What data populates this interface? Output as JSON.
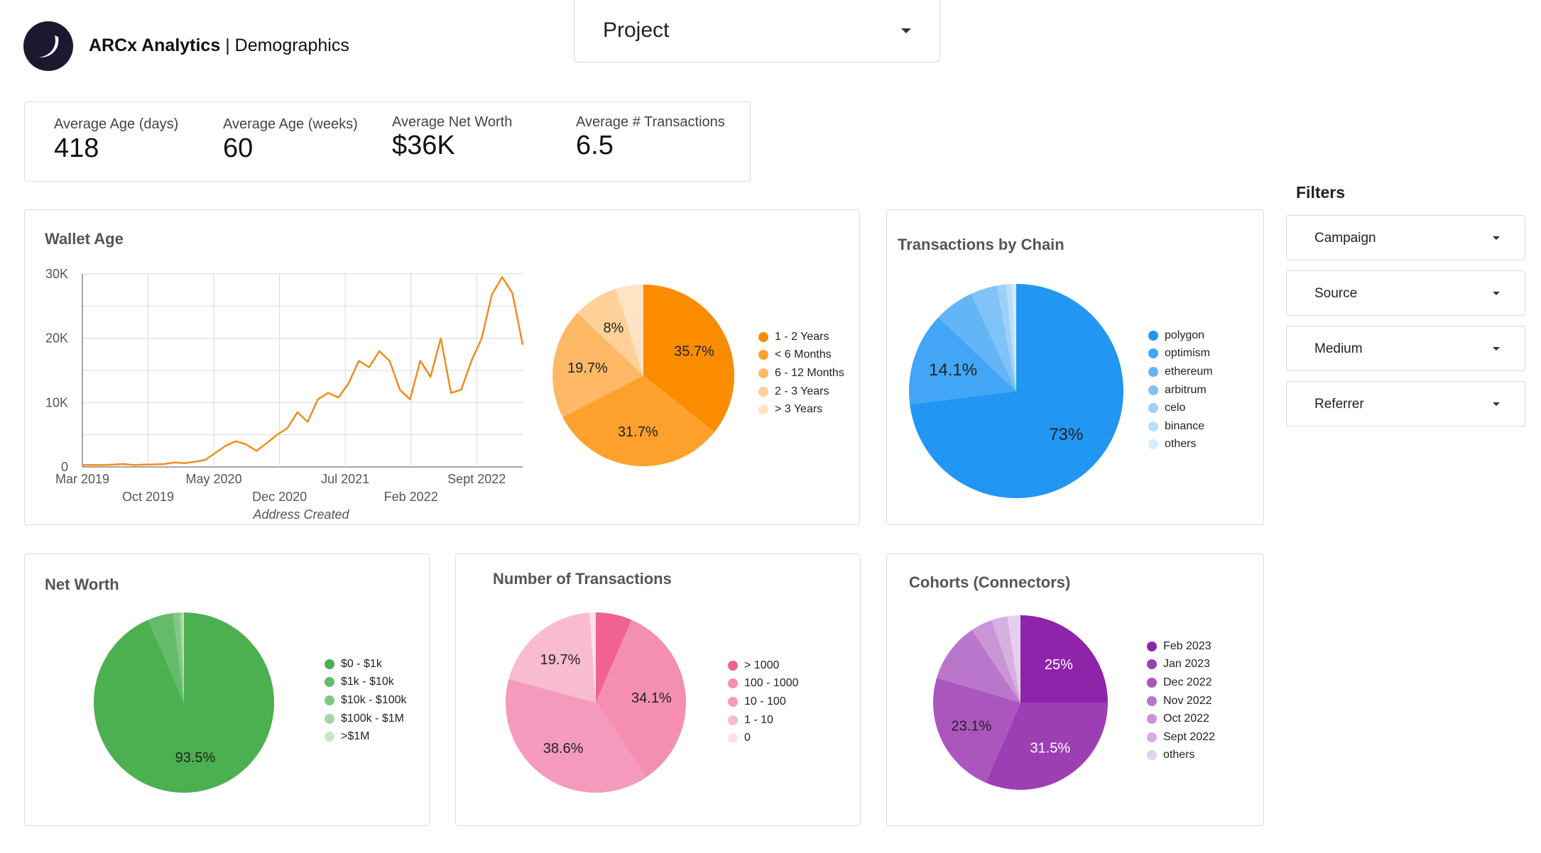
{
  "header": {
    "brand_bold": "ARCx Analytics",
    "brand_rest": " | Demographics",
    "project_label": "Project"
  },
  "kpis": [
    {
      "label": "Average Age (days)",
      "value": "418"
    },
    {
      "label": "Average Age (weeks)",
      "value": "60"
    },
    {
      "label": "Average Net Worth",
      "value": "$36K"
    },
    {
      "label": "Average # Transactions",
      "value": "6.5"
    }
  ],
  "filters": {
    "title": "Filters",
    "items": [
      "Campaign",
      "Source",
      "Medium",
      "Referrer"
    ]
  },
  "cards": {
    "wallet_age": "Wallet Age",
    "transactions_by_chain": "Transactions by Chain",
    "net_worth": "Net Worth",
    "num_transactions": "Number of Transactions",
    "cohorts": "Cohorts (Connectors)"
  },
  "colors": {
    "line": "#f28c1e",
    "grid": "#d9d9d9"
  },
  "chart_data": [
    {
      "id": "wallet_age_line",
      "type": "line",
      "title": "Wallet Age",
      "xlabel": "Address Created",
      "ylabel": "",
      "ylim": [
        0,
        30000
      ],
      "yticks": [
        "0",
        "10K",
        "20K",
        "30K"
      ],
      "xticks": [
        "Mar 2019",
        "Oct 2019",
        "May 2020",
        "Dec 2020",
        "Jul 2021",
        "Feb 2022",
        "Sept 2022"
      ],
      "grid": true,
      "series": [
        {
          "color": "#f28c1e",
          "values": [
            300,
            300,
            300,
            350,
            450,
            300,
            350,
            400,
            450,
            700,
            600,
            800,
            1100,
            2200,
            3300,
            4000,
            3500,
            2500,
            3700,
            5000,
            6000,
            8500,
            7000,
            10500,
            11500,
            10800,
            13000,
            16500,
            15500,
            18000,
            16500,
            12000,
            10500,
            16500,
            14000,
            20000,
            11500,
            12000,
            16500,
            20000,
            26800,
            29500,
            27000,
            19000
          ]
        }
      ]
    },
    {
      "id": "wallet_age_pie",
      "type": "pie",
      "categories": [
        "1 - 2 Years",
        "< 6 Months",
        "6 - 12 Months",
        "2 - 3 Years",
        "> 3 Years"
      ],
      "values": [
        35.7,
        31.7,
        19.7,
        8,
        4.9
      ],
      "labels": [
        "35.7%",
        "31.7%",
        "19.7%",
        "8%",
        ""
      ],
      "colors": [
        "#fb8c00",
        "#ffa12c",
        "#ffb966",
        "#ffd199",
        "#ffe3c4"
      ],
      "legend": "right"
    },
    {
      "id": "chain_pie",
      "type": "pie",
      "title": "Transactions by Chain",
      "categories": [
        "polygon",
        "optimism",
        "ethereum",
        "arbitrum",
        "celo",
        "binance",
        "others"
      ],
      "values": [
        73,
        14.1,
        6,
        4,
        1.4,
        0.9,
        0.6
      ],
      "labels": [
        "73%",
        "14.1%",
        "",
        "",
        "",
        "",
        ""
      ],
      "colors": [
        "#2196f3",
        "#42a5f5",
        "#64b5f6",
        "#7fc3f7",
        "#9dd0f9",
        "#b9ddfb",
        "#d6ebfd"
      ],
      "legend": "right"
    },
    {
      "id": "net_worth_pie",
      "type": "pie",
      "title": "Net Worth",
      "categories": [
        "$0 - $1k",
        "$1k - $10k",
        "$10k - $100k",
        "$100k - $1M",
        ">$1M"
      ],
      "values": [
        93.5,
        4.6,
        1.2,
        0.5,
        0.2
      ],
      "labels": [
        "93.5%",
        "",
        "",
        "",
        ""
      ],
      "colors": [
        "#4caf50",
        "#66bb6a",
        "#81c784",
        "#a5d6a7",
        "#c8e6c9"
      ],
      "legend": "right"
    },
    {
      "id": "num_tx_pie",
      "type": "pie",
      "title": "Number of Transactions",
      "categories": [
        "> 1000",
        "100 - 1000",
        "10 - 100",
        "1 - 10",
        "0"
      ],
      "values": [
        6.5,
        34.1,
        38.6,
        19.7,
        1.1
      ],
      "labels": [
        "",
        "34.1%",
        "38.6%",
        "19.7%",
        ""
      ],
      "colors": [
        "#f06292",
        "#f48fb1",
        "#f49bbd",
        "#f8bbd0",
        "#fce1eb"
      ],
      "legend": "right"
    },
    {
      "id": "cohorts_pie",
      "type": "pie",
      "title": "Cohorts (Connectors)",
      "categories": [
        "Feb 2023",
        "Jan 2023",
        "Dec 2022",
        "Nov 2022",
        "Oct 2022",
        "Sept 2022",
        "others"
      ],
      "values": [
        25,
        31.5,
        23.1,
        11,
        4,
        3,
        2.4
      ],
      "labels": [
        "25%",
        "31.5%",
        "23.1%",
        "",
        "",
        "",
        ""
      ],
      "colors": [
        "#8e24aa",
        "#9c3fb5",
        "#ab56bf",
        "#ba76cb",
        "#c995d6",
        "#d6b0e0",
        "#e6cfee"
      ],
      "legend": "right"
    }
  ]
}
